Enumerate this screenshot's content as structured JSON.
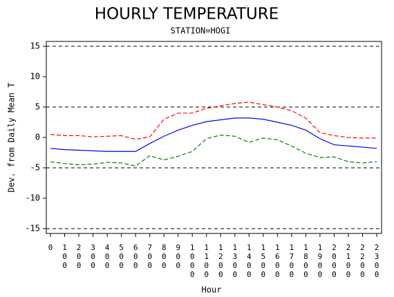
{
  "chart_data": {
    "type": "line",
    "title": "HOURLY TEMPERATURE",
    "subtitle": "STATION=HOGI",
    "x_label": "Hour",
    "y_label": "Dev. from Daily Mean T",
    "categories": [
      "0",
      "100",
      "200",
      "300",
      "400",
      "500",
      "600",
      "700",
      "800",
      "900",
      "1000",
      "1100",
      "1200",
      "1300",
      "1400",
      "1500",
      "1600",
      "1700",
      "1800",
      "1900",
      "2000",
      "2100",
      "2200",
      "2300"
    ],
    "series": [
      {
        "color": "#0000ff",
        "dash": false,
        "values": [
          -1.8,
          -2.0,
          -2.1,
          -2.2,
          -2.3,
          -2.3,
          -2.3,
          -1.0,
          0.2,
          1.2,
          2.0,
          2.6,
          2.9,
          3.2,
          3.2,
          3.0,
          2.5,
          2.0,
          1.2,
          -0.2,
          -1.2,
          -1.4,
          -1.6,
          -1.8
        ]
      },
      {
        "color": "#ff0000",
        "dash": true,
        "values": [
          0.5,
          0.3,
          0.3,
          0.1,
          0.2,
          0.3,
          -0.3,
          0.1,
          3.0,
          4.0,
          4.0,
          4.8,
          5.2,
          5.6,
          5.8,
          5.4,
          5.0,
          4.4,
          3.2,
          0.8,
          0.3,
          0.0,
          -0.1,
          -0.1
        ]
      },
      {
        "color": "#008000",
        "dash": true,
        "values": [
          -4.0,
          -4.3,
          -4.5,
          -4.4,
          -4.1,
          -4.2,
          -4.7,
          -3.0,
          -3.7,
          -3.1,
          -2.3,
          -0.2,
          0.4,
          0.2,
          -0.8,
          -0.1,
          -0.4,
          -1.4,
          -2.6,
          -3.3,
          -3.2,
          -4.0,
          -4.2,
          -4.0
        ]
      }
    ],
    "ylim": [
      -15.8,
      15.8
    ],
    "yticks": [
      -15,
      -10,
      -5,
      0,
      5,
      10,
      15
    ],
    "reference_lines": [
      -15,
      -5,
      5,
      15
    ]
  }
}
